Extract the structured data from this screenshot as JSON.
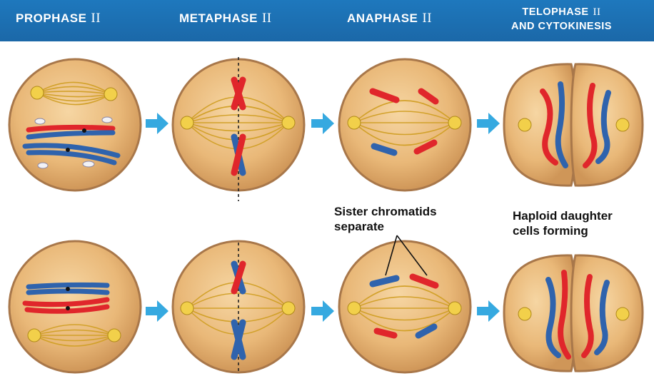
{
  "header": {
    "phases": [
      {
        "label": "PROPHASE",
        "numeral": "II"
      },
      {
        "label": "METAPHASE",
        "numeral": "II"
      },
      {
        "label": "ANAPHASE",
        "numeral": "II"
      },
      {
        "label": "TELOPHASE",
        "numeral": "II",
        "line2": "AND CYTOKINESIS"
      }
    ]
  },
  "annotations": {
    "sister_line1": "Sister chromatids",
    "sister_line2": "separate",
    "haploid_line1": "Haploid daughter",
    "haploid_line2": "cells forming"
  },
  "colors": {
    "header_blue": "#1e72b6",
    "cell_fill": "#e9b878",
    "cell_edge": "#a8774a",
    "spindle": "#d2a12a",
    "chromosome_red": "#e0262b",
    "chromosome_blue": "#2f63ad",
    "arrow": "#36a9e0"
  }
}
